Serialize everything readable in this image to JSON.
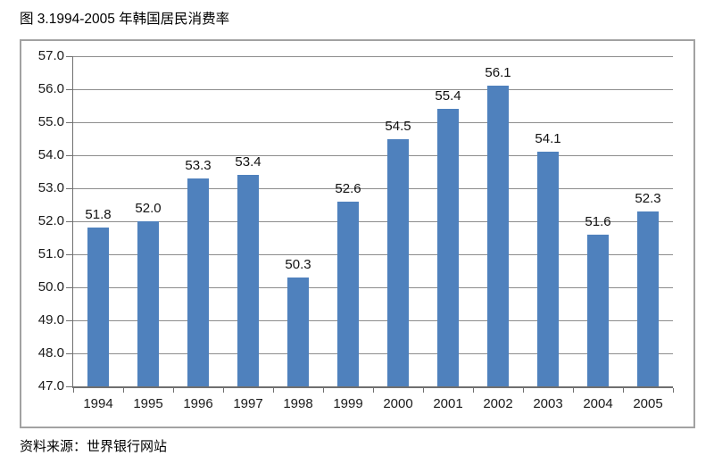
{
  "title": "图 3.1994-2005 年韩国居民消费率",
  "source": "资料来源：世界银行网站",
  "chart_data": {
    "type": "bar",
    "title": "图 3.1994-2005 年韩国居民消费率",
    "categories": [
      "1994",
      "1995",
      "1996",
      "1997",
      "1998",
      "1999",
      "2000",
      "2001",
      "2002",
      "2003",
      "2004",
      "2005"
    ],
    "values": [
      51.8,
      52.0,
      53.3,
      53.4,
      50.3,
      52.6,
      54.5,
      55.4,
      56.1,
      54.1,
      51.6,
      52.3
    ],
    "value_labels": [
      "51.8",
      "52.0",
      "53.3",
      "53.4",
      "50.3",
      "52.6",
      "54.5",
      "55.4",
      "56.1",
      "54.1",
      "51.6",
      "52.3"
    ],
    "xlabel": "",
    "ylabel": "",
    "ylim": [
      47.0,
      57.0
    ],
    "ytick_step": 1.0,
    "yticks": [
      "57.0",
      "56.0",
      "55.0",
      "54.0",
      "53.0",
      "52.0",
      "51.0",
      "50.0",
      "49.0",
      "48.0",
      "47.0"
    ],
    "grid": true,
    "legend": "none",
    "bar_color": "#4F81BD",
    "gridline_color": "#8d8d8d",
    "axis_color": "#6f6f6f",
    "frame_border_color": "#a2a2a2",
    "source_note": "资料来源：世界银行网站"
  }
}
